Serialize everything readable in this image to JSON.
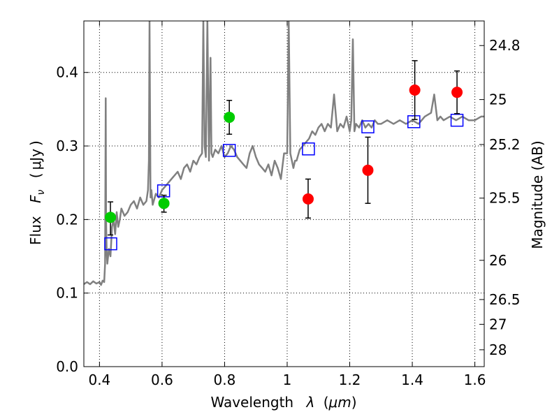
{
  "chart_data": {
    "type": "scatter",
    "xlabel": "Wavelength",
    "xlabel_symbol": "λ",
    "xlabel_unit_open": "(",
    "xlabel_unit": "μm",
    "xlabel_unit_close": ")",
    "ylabel": "Flux",
    "ylabel_symbol": "F",
    "ylabel_subscript": "ν",
    "ylabel_unit_open": "(",
    "ylabel_unit": "μJy",
    "ylabel_unit_close": ")",
    "y2label": "Magnitude (AB)",
    "xlim": [
      0.35,
      1.63
    ],
    "ylim": [
      0.0,
      0.47
    ],
    "grid": true,
    "x_ticks": [
      {
        "value": 0.4,
        "label": "0.4"
      },
      {
        "value": 0.6,
        "label": "0.6"
      },
      {
        "value": 0.8,
        "label": "0.8"
      },
      {
        "value": 1.0,
        "label": "1"
      },
      {
        "value": 1.2,
        "label": "1.2"
      },
      {
        "value": 1.4,
        "label": "1.4"
      },
      {
        "value": 1.6,
        "label": "1.6"
      }
    ],
    "y_ticks": [
      {
        "value": 0.0,
        "label": "0.0"
      },
      {
        "value": 0.1,
        "label": "0.1"
      },
      {
        "value": 0.2,
        "label": "0.2"
      },
      {
        "value": 0.3,
        "label": "0.3"
      },
      {
        "value": 0.4,
        "label": "0.4"
      }
    ],
    "y2_ticks": [
      {
        "value": 24.8,
        "label": "24.8"
      },
      {
        "value": 25.0,
        "label": "25"
      },
      {
        "value": 25.2,
        "label": "25.2"
      },
      {
        "value": 25.5,
        "label": "25.5"
      },
      {
        "value": 26.0,
        "label": "26"
      },
      {
        "value": 26.5,
        "label": "26.5"
      },
      {
        "value": 27.0,
        "label": "27"
      },
      {
        "value": 28.0,
        "label": "28"
      }
    ],
    "model_spectrum": {
      "color": "#808080",
      "x": [
        0.35,
        0.36,
        0.37,
        0.38,
        0.39,
        0.4,
        0.405,
        0.41,
        0.415,
        0.418,
        0.42,
        0.421,
        0.423,
        0.425,
        0.43,
        0.435,
        0.44,
        0.445,
        0.45,
        0.455,
        0.46,
        0.465,
        0.47,
        0.48,
        0.49,
        0.5,
        0.51,
        0.52,
        0.53,
        0.54,
        0.55,
        0.555,
        0.558,
        0.56,
        0.563,
        0.566,
        0.57,
        0.58,
        0.59,
        0.6,
        0.61,
        0.62,
        0.63,
        0.64,
        0.65,
        0.66,
        0.67,
        0.68,
        0.69,
        0.7,
        0.71,
        0.72,
        0.728,
        0.732,
        0.736,
        0.74,
        0.745,
        0.75,
        0.755,
        0.758,
        0.762,
        0.77,
        0.78,
        0.79,
        0.8,
        0.81,
        0.82,
        0.83,
        0.84,
        0.85,
        0.86,
        0.87,
        0.88,
        0.89,
        0.9,
        0.91,
        0.92,
        0.93,
        0.94,
        0.95,
        0.96,
        0.97,
        0.98,
        0.99,
        1.0,
        1.005,
        1.01,
        1.015,
        1.02,
        1.025,
        1.03,
        1.04,
        1.05,
        1.06,
        1.07,
        1.08,
        1.09,
        1.1,
        1.11,
        1.12,
        1.13,
        1.14,
        1.15,
        1.16,
        1.17,
        1.18,
        1.19,
        1.2,
        1.205,
        1.21,
        1.215,
        1.22,
        1.23,
        1.24,
        1.25,
        1.26,
        1.27,
        1.28,
        1.29,
        1.3,
        1.32,
        1.34,
        1.36,
        1.38,
        1.4,
        1.42,
        1.44,
        1.46,
        1.47,
        1.48,
        1.49,
        1.5,
        1.52,
        1.54,
        1.56,
        1.58,
        1.6,
        1.62,
        1.63
      ],
      "y": [
        0.112,
        0.115,
        0.112,
        0.116,
        0.113,
        0.115,
        0.111,
        0.117,
        0.115,
        0.14,
        0.365,
        0.2,
        0.155,
        0.14,
        0.16,
        0.15,
        0.19,
        0.2,
        0.18,
        0.21,
        0.19,
        0.2,
        0.215,
        0.205,
        0.21,
        0.22,
        0.225,
        0.215,
        0.23,
        0.22,
        0.225,
        0.24,
        0.28,
        0.47,
        0.23,
        0.24,
        0.22,
        0.235,
        0.23,
        0.24,
        0.245,
        0.25,
        0.255,
        0.26,
        0.265,
        0.255,
        0.27,
        0.275,
        0.265,
        0.28,
        0.275,
        0.285,
        0.29,
        0.47,
        0.3,
        0.285,
        0.47,
        0.28,
        0.42,
        0.29,
        0.285,
        0.295,
        0.29,
        0.3,
        0.285,
        0.29,
        0.3,
        0.295,
        0.285,
        0.28,
        0.275,
        0.27,
        0.29,
        0.3,
        0.285,
        0.275,
        0.27,
        0.265,
        0.275,
        0.26,
        0.28,
        0.27,
        0.255,
        0.29,
        0.29,
        0.47,
        0.29,
        0.28,
        0.27,
        0.28,
        0.28,
        0.295,
        0.3,
        0.305,
        0.31,
        0.32,
        0.315,
        0.325,
        0.33,
        0.32,
        0.33,
        0.325,
        0.37,
        0.32,
        0.33,
        0.325,
        0.34,
        0.32,
        0.335,
        0.445,
        0.32,
        0.33,
        0.325,
        0.335,
        0.325,
        0.33,
        0.325,
        0.335,
        0.33,
        0.33,
        0.335,
        0.33,
        0.335,
        0.33,
        0.335,
        0.33,
        0.34,
        0.345,
        0.37,
        0.335,
        0.34,
        0.335,
        0.34,
        0.335,
        0.34,
        0.335,
        0.335,
        0.34,
        0.34
      ]
    },
    "series": [
      {
        "marker": "square",
        "color": "#0000ff",
        "points": [
          {
            "x": 0.436,
            "y": 0.167
          },
          {
            "x": 0.605,
            "y": 0.239
          },
          {
            "x": 0.815,
            "y": 0.294
          },
          {
            "x": 1.068,
            "y": 0.296
          },
          {
            "x": 1.258,
            "y": 0.326
          },
          {
            "x": 1.405,
            "y": 0.333
          },
          {
            "x": 1.543,
            "y": 0.335
          }
        ]
      },
      {
        "marker": "circle",
        "color": "#00cc00",
        "points": [
          {
            "x": 0.435,
            "y": 0.203,
            "yerr": [
              0.024,
              0.021
            ]
          },
          {
            "x": 0.606,
            "y": 0.222,
            "yerr": [
              0.012,
              0.011
            ]
          },
          {
            "x": 0.815,
            "y": 0.339,
            "yerr": [
              0.023,
              0.023
            ]
          }
        ]
      },
      {
        "marker": "circle",
        "color": "#ff0000",
        "points": [
          {
            "x": 1.067,
            "y": 0.228,
            "yerr": [
              0.026,
              0.027
            ]
          },
          {
            "x": 1.258,
            "y": 0.267,
            "yerr": [
              0.045,
              0.045
            ]
          },
          {
            "x": 1.408,
            "y": 0.376,
            "yerr": [
              0.04,
              0.04
            ]
          },
          {
            "x": 1.543,
            "y": 0.373,
            "yerr": [
              0.029,
              0.029
            ]
          }
        ]
      }
    ]
  }
}
